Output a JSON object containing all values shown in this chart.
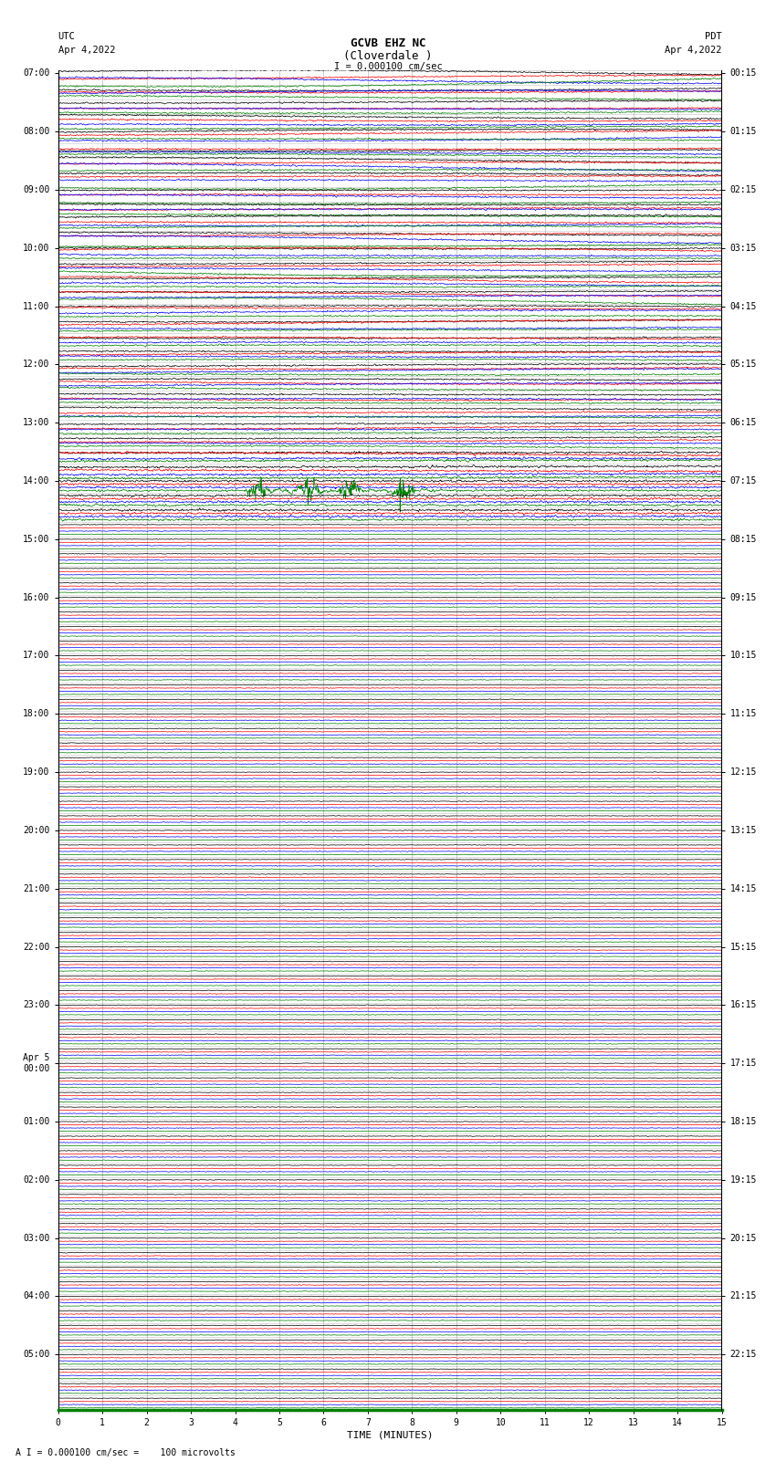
{
  "title_line1": "GCVB EHZ NC",
  "title_line2": "(Cloverdale )",
  "scale_label": "I = 0.000100 cm/sec",
  "left_label_top": "UTC",
  "left_label_date": "Apr 4,2022",
  "right_label_top": "PDT",
  "right_label_date": "Apr 4,2022",
  "bottom_label": "TIME (MINUTES)",
  "bottom_note": "A I = 0.000100 cm/sec =    100 microvolts",
  "num_rows": 92,
  "minutes_per_row": 15,
  "x_ticks": [
    0,
    1,
    2,
    3,
    4,
    5,
    6,
    7,
    8,
    9,
    10,
    11,
    12,
    13,
    14,
    15
  ],
  "colors": [
    "black",
    "red",
    "blue",
    "green"
  ],
  "background_color": "white",
  "plot_bg_color": "white",
  "grid_color": "#999999"
}
